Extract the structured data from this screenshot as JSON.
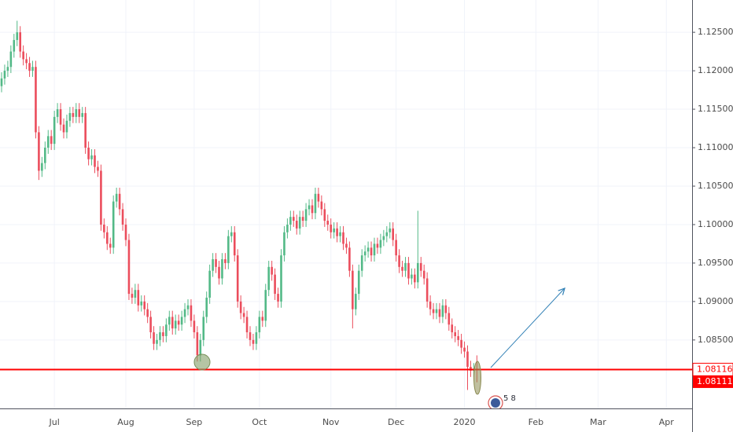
{
  "chart_data": {
    "type": "candlestick",
    "up_color": "#53b987",
    "down_color": "#eb4d5c",
    "level_color": "#ff0000",
    "ylim": [
      1.0761,
      1.1292
    ],
    "yticks": [
      {
        "value": 1.085,
        "label": "1.08500"
      },
      {
        "value": 1.09,
        "label": "1.09000"
      },
      {
        "value": 1.095,
        "label": "1.09500"
      },
      {
        "value": 1.1,
        "label": "1.10000"
      },
      {
        "value": 1.105,
        "label": "1.10500"
      },
      {
        "value": 1.11,
        "label": "1.11000"
      },
      {
        "value": 1.115,
        "label": "1.11500"
      },
      {
        "value": 1.12,
        "label": "1.12000"
      },
      {
        "value": 1.125,
        "label": "1.12500"
      }
    ],
    "grid": true,
    "level": 1.08116,
    "last_price": 1.08111,
    "event_label": "5 8",
    "categories": [
      null,
      null,
      null,
      null,
      null,
      null,
      null,
      null,
      null,
      null,
      null,
      null,
      null,
      null,
      null,
      null,
      null,
      "Jul",
      null,
      null,
      null,
      null,
      null,
      null,
      null,
      null,
      null,
      null,
      null,
      null,
      null,
      null,
      null,
      null,
      null,
      null,
      null,
      null,
      null,
      null,
      "Aug",
      null,
      null,
      null,
      null,
      null,
      null,
      null,
      null,
      null,
      null,
      null,
      null,
      null,
      null,
      null,
      null,
      null,
      null,
      null,
      null,
      null,
      "Sep",
      null,
      null,
      null,
      null,
      null,
      null,
      null,
      null,
      null,
      null,
      null,
      null,
      null,
      null,
      null,
      null,
      null,
      null,
      null,
      null,
      "Oct",
      null,
      null,
      null,
      null,
      null,
      null,
      null,
      null,
      null,
      null,
      null,
      null,
      null,
      null,
      null,
      null,
      null,
      null,
      null,
      null,
      null,
      null,
      "Nov",
      null,
      null,
      null,
      null,
      null,
      null,
      null,
      null,
      null,
      null,
      null,
      null,
      null,
      null,
      null,
      null,
      null,
      null,
      null,
      null,
      "Dec",
      null,
      null,
      null,
      null,
      null,
      null,
      null,
      null,
      null,
      null,
      null,
      null,
      null,
      null,
      null,
      null,
      null,
      null,
      null,
      null,
      null,
      "2020",
      null,
      null,
      null,
      null,
      null,
      null,
      null,
      null,
      null,
      null,
      null,
      null,
      null,
      null,
      null,
      null,
      null,
      null,
      null,
      null,
      null,
      null,
      "Feb",
      null,
      null,
      null,
      null,
      null,
      null,
      null,
      null,
      null,
      null,
      null,
      null,
      null,
      null,
      null,
      null,
      null,
      null,
      null,
      "Mar",
      null,
      null,
      null,
      null,
      null,
      null,
      null,
      null,
      null,
      null,
      null,
      null,
      null,
      null,
      null,
      null,
      null,
      null,
      null,
      null,
      null,
      "Apr",
      null,
      null,
      null,
      null
    ],
    "open": [
      1.118,
      1.119,
      1.12,
      1.1205,
      1.1225,
      1.124,
      1.125,
      1.1225,
      1.1215,
      1.121,
      1.12,
      1.1205,
      1.112,
      1.107,
      1.108,
      1.11,
      1.1115,
      1.1105,
      1.114,
      1.115,
      1.113,
      1.112,
      1.1135,
      1.1145,
      1.114,
      1.115,
      1.114,
      1.1145,
      1.11,
      1.1085,
      1.109,
      1.1075,
      1.107,
      1.1,
      1.099,
      1.0975,
      1.097,
      1.103,
      1.104,
      1.102,
      1.1,
      1.098,
      1.091,
      1.0905,
      1.0915,
      1.0895,
      1.09,
      1.089,
      1.088,
      1.086,
      1.0845,
      1.085,
      1.086,
      1.0855,
      1.087,
      1.088,
      1.0865,
      1.0875,
      1.087,
      1.088,
      1.089,
      1.0895,
      1.0875,
      1.086,
      1.083,
      1.085,
      1.088,
      1.0905,
      1.094,
      1.0955,
      1.0945,
      1.093,
      1.0955,
      1.095,
      1.0985,
      1.099,
      1.096,
      1.09,
      1.0885,
      1.088,
      1.086,
      1.085,
      1.0845,
      1.086,
      1.088,
      1.0875,
      1.0915,
      1.0945,
      1.0935,
      1.091,
      1.09,
      1.096,
      1.099,
      1.1,
      1.101,
      1.1005,
      1.0995,
      1.101,
      1.1005,
      1.102,
      1.1025,
      1.1015,
      1.104,
      1.103,
      1.102,
      1.1005,
      1.1,
      1.099,
      1.0995,
      1.0985,
      1.099,
      1.0975,
      1.097,
      1.094,
      1.089,
      1.091,
      1.094,
      1.096,
      1.0965,
      1.097,
      1.096,
      1.0975,
      1.097,
      1.098,
      1.0985,
      1.099,
      1.0995,
      1.098,
      1.096,
      1.0945,
      1.094,
      1.095,
      1.093,
      1.0935,
      1.0925,
      1.095,
      1.094,
      1.093,
      1.09,
      1.089,
      1.0885,
      1.089,
      1.088,
      1.0895,
      1.0885,
      1.087,
      1.086,
      1.0855,
      1.085,
      1.084,
      1.0835,
      1.0815,
      1.081,
      1.0812,
      null,
      null,
      null,
      null,
      null,
      null,
      null,
      null,
      null,
      null,
      null,
      null,
      null,
      null,
      null,
      null,
      null,
      null,
      null,
      null,
      null,
      null,
      null,
      null,
      null,
      null,
      null,
      null,
      null,
      null,
      null,
      null,
      null,
      null,
      null,
      null,
      null,
      null,
      null,
      null,
      null,
      null,
      null,
      null,
      null,
      null,
      null,
      null,
      null,
      null,
      null,
      null,
      null,
      null,
      null,
      null,
      null,
      null,
      null,
      null,
      null,
      null,
      null,
      null,
      null
    ],
    "high": [
      1.1198,
      1.1208,
      1.1213,
      1.1233,
      1.1248,
      1.1265,
      1.1258,
      1.1233,
      1.1223,
      1.1218,
      1.1213,
      1.1213,
      1.1128,
      1.1088,
      1.1108,
      1.1123,
      1.1123,
      1.1148,
      1.1158,
      1.1158,
      1.1138,
      1.1143,
      1.1153,
      1.1153,
      1.1158,
      1.1158,
      1.1153,
      1.1153,
      1.1108,
      1.1098,
      1.1098,
      1.1083,
      1.1078,
      1.1008,
      1.0998,
      1.0983,
      1.1038,
      1.1048,
      1.1048,
      1.1028,
      1.1008,
      1.0988,
      1.0918,
      1.0923,
      1.0923,
      1.0908,
      1.0908,
      1.0898,
      1.0888,
      1.0868,
      1.0858,
      1.0868,
      1.0868,
      1.0878,
      1.0888,
      1.0888,
      1.0883,
      1.0883,
      1.0888,
      1.0898,
      1.0903,
      1.0903,
      1.0883,
      1.0868,
      1.0858,
      1.0888,
      1.0913,
      1.0948,
      1.0963,
      1.0963,
      1.0953,
      1.0963,
      1.0963,
      1.0993,
      1.0998,
      1.0998,
      1.0968,
      1.0908,
      1.0893,
      1.0888,
      1.0868,
      1.0858,
      1.0868,
      1.0888,
      1.0888,
      1.0923,
      1.0953,
      1.0953,
      1.0943,
      1.0918,
      1.0968,
      1.0998,
      1.1008,
      1.1018,
      1.1018,
      1.1013,
      1.1018,
      1.1018,
      1.1028,
      1.1033,
      1.1033,
      1.1048,
      1.1048,
      1.1038,
      1.1028,
      1.1013,
      1.1008,
      1.1003,
      1.1003,
      1.0998,
      1.0998,
      1.0983,
      1.0978,
      1.0948,
      1.0918,
      1.0948,
      1.0968,
      1.0973,
      1.0978,
      1.0978,
      1.0983,
      1.0983,
      1.0988,
      1.0993,
      1.0998,
      1.1003,
      1.1003,
      1.0988,
      1.0968,
      1.0953,
      1.0958,
      1.0958,
      1.0943,
      1.0943,
      1.1018,
      1.0958,
      1.0948,
      1.0938,
      1.0908,
      1.0898,
      1.0898,
      1.0898,
      1.0903,
      1.0903,
      1.0893,
      1.0878,
      1.0868,
      1.0863,
      1.0858,
      1.0848,
      1.0843,
      1.0823,
      1.082,
      1.083,
      null,
      null,
      null,
      null,
      null,
      null,
      null,
      null,
      null,
      null,
      null,
      null,
      null,
      null,
      null,
      null,
      null,
      null,
      null,
      null,
      null,
      null,
      null,
      null,
      null,
      null,
      null,
      null,
      null,
      null,
      null,
      null,
      null,
      null,
      null,
      null,
      null,
      null,
      null,
      null,
      null,
      null,
      null,
      null,
      null,
      null,
      null,
      null,
      null,
      null,
      null,
      null,
      null,
      null,
      null,
      null,
      null,
      null,
      null,
      null,
      null,
      null,
      null,
      null,
      null
    ],
    "low": [
      1.1172,
      1.1182,
      1.1192,
      1.1197,
      1.1217,
      1.1232,
      1.1217,
      1.1207,
      1.1202,
      1.1192,
      1.1192,
      1.1112,
      1.1058,
      1.1062,
      1.1072,
      1.1092,
      1.1097,
      1.1097,
      1.1132,
      1.1122,
      1.1112,
      1.1112,
      1.1127,
      1.1132,
      1.1132,
      1.1132,
      1.1132,
      1.1092,
      1.1077,
      1.1077,
      1.1067,
      1.1062,
      1.0992,
      1.0982,
      1.0967,
      1.0962,
      1.0962,
      1.1022,
      1.1012,
      1.0992,
      1.0972,
      1.0902,
      1.0897,
      1.0897,
      1.0887,
      1.0887,
      1.0882,
      1.0872,
      1.0852,
      1.0837,
      1.0837,
      1.0842,
      1.0847,
      1.0847,
      1.0862,
      1.0857,
      1.0857,
      1.0862,
      1.0862,
      1.0872,
      1.0882,
      1.0867,
      1.0852,
      1.0822,
      1.0822,
      1.0842,
      1.0872,
      1.0897,
      1.0932,
      1.0937,
      1.0922,
      1.0922,
      1.0942,
      1.0942,
      1.0977,
      1.0952,
      1.0892,
      1.0877,
      1.0872,
      1.0852,
      1.0842,
      1.0837,
      1.0837,
      1.0852,
      1.0867,
      1.0867,
      1.0907,
      1.0927,
      1.0902,
      1.0892,
      1.0892,
      1.0952,
      1.0982,
      1.0992,
      1.0997,
      1.0987,
      1.0987,
      1.0997,
      1.0997,
      1.1012,
      1.1007,
      1.1007,
      1.1022,
      1.1012,
      1.0997,
      1.0992,
      1.0982,
      1.0982,
      1.0977,
      1.0977,
      1.0967,
      1.0962,
      1.0932,
      1.0865,
      1.0882,
      1.0902,
      1.0932,
      1.0952,
      1.0957,
      1.0952,
      1.0952,
      1.0962,
      1.0962,
      1.0972,
      1.0977,
      1.0982,
      1.0972,
      1.0952,
      1.0937,
      1.0932,
      1.0932,
      1.0922,
      1.0922,
      1.0917,
      1.0917,
      1.0932,
      1.0922,
      1.0892,
      1.0882,
      1.0877,
      1.0877,
      1.0872,
      1.0872,
      1.0877,
      1.0862,
      1.0852,
      1.0847,
      1.0842,
      1.0832,
      1.0827,
      1.0785,
      1.0802,
      1.0802,
      1.0795,
      null,
      null,
      null,
      null,
      null,
      null,
      null,
      null,
      null,
      null,
      null,
      null,
      null,
      null,
      null,
      null,
      null,
      null,
      null,
      null,
      null,
      null,
      null,
      null,
      null,
      null,
      null,
      null,
      null,
      null,
      null,
      null,
      null,
      null,
      null,
      null,
      null,
      null,
      null,
      null,
      null,
      null,
      null,
      null,
      null,
      null,
      null,
      null,
      null,
      null,
      null,
      null,
      null,
      null,
      null,
      null,
      null,
      null,
      null,
      null,
      null,
      null,
      null,
      null,
      null
    ],
    "close": [
      1.119,
      1.12,
      1.1205,
      1.1225,
      1.124,
      1.125,
      1.1225,
      1.1215,
      1.121,
      1.12,
      1.1205,
      1.112,
      1.107,
      1.108,
      1.11,
      1.1115,
      1.1105,
      1.114,
      1.115,
      1.113,
      1.112,
      1.1135,
      1.1145,
      1.114,
      1.115,
      1.114,
      1.1145,
      1.11,
      1.1085,
      1.109,
      1.1075,
      1.107,
      1.1,
      1.099,
      1.0975,
      1.097,
      1.103,
      1.104,
      1.102,
      1.1,
      1.098,
      1.091,
      1.0905,
      1.0915,
      1.0895,
      1.09,
      1.089,
      1.088,
      1.086,
      1.0845,
      1.085,
      1.086,
      1.0855,
      1.087,
      1.088,
      1.0865,
      1.0875,
      1.087,
      1.088,
      1.089,
      1.0895,
      1.0875,
      1.086,
      1.083,
      1.085,
      1.088,
      1.0905,
      1.094,
      1.0955,
      1.0945,
      1.093,
      1.0955,
      1.095,
      1.0985,
      1.099,
      1.096,
      1.09,
      1.0885,
      1.088,
      1.086,
      1.085,
      1.0845,
      1.086,
      1.088,
      1.0875,
      1.0915,
      1.0945,
      1.0935,
      1.091,
      1.09,
      1.096,
      1.099,
      1.1,
      1.101,
      1.1005,
      1.0995,
      1.101,
      1.1005,
      1.102,
      1.1025,
      1.1015,
      1.104,
      1.103,
      1.102,
      1.1005,
      1.1,
      1.099,
      1.0995,
      1.0985,
      1.099,
      1.0975,
      1.097,
      1.094,
      1.089,
      1.091,
      1.094,
      1.096,
      1.0965,
      1.097,
      1.096,
      1.0975,
      1.097,
      1.098,
      1.0985,
      1.099,
      1.0995,
      1.098,
      1.096,
      1.0945,
      1.094,
      1.095,
      1.093,
      1.0935,
      1.0925,
      1.095,
      1.094,
      1.093,
      1.09,
      1.089,
      1.0885,
      1.089,
      1.088,
      1.0895,
      1.0885,
      1.087,
      1.086,
      1.0855,
      1.085,
      1.084,
      1.0835,
      1.0815,
      1.081,
      1.0812,
      1.0811,
      null,
      null,
      null,
      null,
      null,
      null,
      null,
      null,
      null,
      null,
      null,
      null,
      null,
      null,
      null,
      null,
      null,
      null,
      null,
      null,
      null,
      null,
      null,
      null,
      null,
      null,
      null,
      null,
      null,
      null,
      null,
      null,
      null,
      null,
      null,
      null,
      null,
      null,
      null,
      null,
      null,
      null,
      null,
      null,
      null,
      null,
      null,
      null,
      null,
      null,
      null,
      null,
      null,
      null,
      null,
      null,
      null,
      null,
      null,
      null,
      null,
      null,
      null,
      null,
      null
    ]
  }
}
